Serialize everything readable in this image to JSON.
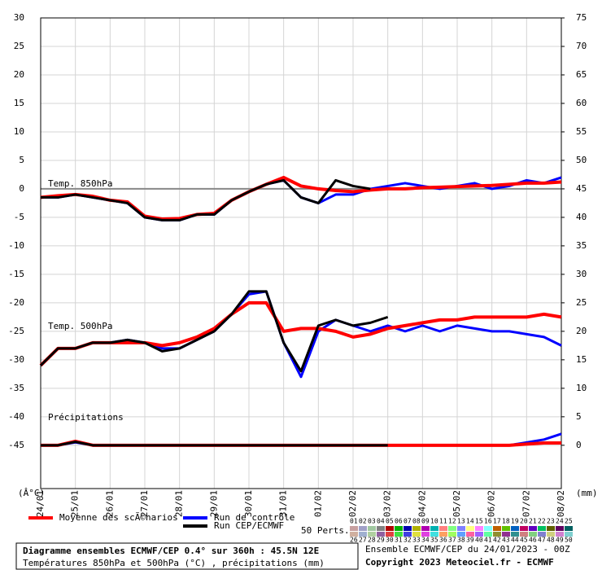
{
  "chart_data": {
    "type": "line",
    "x": [
      0,
      0.5,
      1,
      1.5,
      2,
      2.5,
      3,
      3.5,
      4,
      4.5,
      5,
      5.5,
      6,
      6.5,
      7,
      7.5,
      8,
      8.5,
      9,
      9.5,
      10,
      10.5,
      11,
      11.5,
      12,
      12.5,
      13,
      13.5,
      14,
      14.5,
      15
    ],
    "xlim": [
      0,
      15
    ],
    "xticks": [
      {
        "value": 0,
        "label": "24/01"
      },
      {
        "value": 1,
        "label": "25/01"
      },
      {
        "value": 2,
        "label": "26/01"
      },
      {
        "value": 3,
        "label": "27/01"
      },
      {
        "value": 4,
        "label": "28/01"
      },
      {
        "value": 5,
        "label": "29/01"
      },
      {
        "value": 6,
        "label": "30/01"
      },
      {
        "value": 7,
        "label": "31/01"
      },
      {
        "value": 8,
        "label": "01/02"
      },
      {
        "value": 9,
        "label": "02/02"
      },
      {
        "value": 10,
        "label": "03/02"
      },
      {
        "value": 11,
        "label": "04/02"
      },
      {
        "value": 12,
        "label": "05/02"
      },
      {
        "value": 13,
        "label": "06/02"
      },
      {
        "value": 14,
        "label": "07/02"
      },
      {
        "value": 15,
        "label": "08/02"
      }
    ],
    "ylim": [
      -52.6,
      30
    ],
    "yticks": [
      30,
      25,
      20,
      15,
      10,
      5,
      0,
      -5,
      -10,
      -15,
      -20,
      -25,
      -30,
      -35,
      -40,
      -45
    ],
    "y2lim": [
      -7.6,
      75
    ],
    "y2ticks": [
      75,
      70,
      65,
      60,
      55,
      50,
      45,
      40,
      35,
      30,
      25,
      20,
      15,
      10,
      5,
      0
    ],
    "y_label": "(Â°C)",
    "y2_label": "(mm)",
    "grid": true,
    "annotations": [
      {
        "text": "Temp. 850hPa",
        "y": 0
      },
      {
        "text": "Temp. 500hPa",
        "y": -25
      },
      {
        "text": "Précipitations",
        "y": -41
      }
    ],
    "series": [
      {
        "name": "Run de contrôle",
        "color": "#0000ff",
        "t850": [
          -1.5,
          -1.5,
          -1,
          -1.5,
          -2,
          -2.5,
          -5,
          -5.5,
          -5.5,
          -4.5,
          -4.5,
          -2,
          -0.5,
          0.8,
          1.5,
          -1.5,
          -2.5,
          -1,
          -1,
          0,
          0.5,
          1,
          0.5,
          0,
          0.5,
          1,
          0,
          0.5,
          1.5,
          1,
          2
        ],
        "t500": [
          -31,
          -28,
          -28,
          -27,
          -27,
          -26.5,
          -27,
          -28,
          -28,
          -26.5,
          -25,
          -22,
          -18.5,
          -18,
          -27,
          -33,
          -25,
          -23,
          -24,
          -25,
          -24,
          -25,
          -24,
          -25,
          -24,
          -24.5,
          -25,
          -25,
          -25.5,
          -26,
          -27.5
        ],
        "precip": [
          0,
          0,
          0.5,
          0,
          0,
          0,
          0,
          0,
          0,
          0,
          0,
          0,
          0,
          0,
          0,
          0,
          0,
          0,
          0,
          0,
          0,
          0,
          0,
          0,
          0,
          0,
          0,
          0,
          0.5,
          1,
          2
        ]
      },
      {
        "name": "Moyenne des scÃ©narios",
        "color": "#ff0000",
        "t850": [
          -1.5,
          -1.2,
          -1,
          -1.3,
          -2,
          -2.3,
          -4.8,
          -5.3,
          -5.2,
          -4.5,
          -4.3,
          -2,
          -0.5,
          0.8,
          2,
          0.5,
          0,
          -0.3,
          -0.5,
          -0.2,
          0,
          0,
          0.2,
          0.3,
          0.4,
          0.5,
          0.6,
          0.8,
          1,
          1,
          1.2
        ],
        "t500": [
          -31,
          -28,
          -28,
          -27,
          -27,
          -27,
          -27,
          -27.5,
          -27,
          -26,
          -24.5,
          -22,
          -20,
          -20,
          -25,
          -24.5,
          -24.5,
          -25,
          -26,
          -25.5,
          -24.5,
          -24,
          -23.5,
          -23,
          -23,
          -22.5,
          -22.5,
          -22.5,
          -22.5,
          -22,
          -22.5
        ],
        "precip": [
          0,
          0,
          0.7,
          0,
          0,
          0,
          0,
          0,
          0,
          0,
          0,
          0,
          0,
          0,
          0,
          0,
          0,
          0,
          0,
          0,
          0,
          0,
          0,
          0,
          0,
          0,
          0,
          0,
          0.2,
          0.4,
          0.4
        ]
      },
      {
        "name": "Run CEP/ECMWF",
        "color": "#000000",
        "t850": [
          -1.5,
          -1.5,
          -1,
          -1.5,
          -2,
          -2.5,
          -5,
          -5.5,
          -5.5,
          -4.5,
          -4.5,
          -2,
          -0.5,
          0.8,
          1.5,
          -1.5,
          -2.5,
          1.5,
          0.5,
          0,
          null,
          null,
          null,
          null,
          null,
          null,
          null,
          null,
          null,
          null,
          null
        ],
        "t500": [
          -31,
          -28,
          -28,
          -27,
          -27,
          -26.5,
          -27,
          -28.5,
          -28,
          -26.5,
          -25,
          -22,
          -18,
          -18,
          -27,
          -32,
          -24,
          -23,
          -24,
          -23.5,
          -22.5,
          null,
          null,
          null,
          null,
          null,
          null,
          null,
          null,
          null,
          null
        ],
        "precip": [
          0,
          0,
          0.6,
          0,
          0,
          0,
          0,
          0,
          0,
          0,
          0,
          0,
          0,
          0,
          0,
          0,
          0,
          0,
          0,
          0,
          0,
          null,
          null,
          null,
          null,
          null,
          null,
          null,
          null,
          null,
          null
        ]
      }
    ],
    "perts_label": "50 Perts.",
    "members": [
      {
        "name": "01",
        "color": "#c8a0a0"
      },
      {
        "name": "02",
        "color": "#a0a0c8"
      },
      {
        "name": "03",
        "color": "#a0c8a0"
      },
      {
        "name": "04",
        "color": "#808080"
      },
      {
        "name": "05",
        "color": "#b00000"
      },
      {
        "name": "06",
        "color": "#00b000"
      },
      {
        "name": "07",
        "color": "#0000b0"
      },
      {
        "name": "08",
        "color": "#b0b000"
      },
      {
        "name": "09",
        "color": "#b000b0"
      },
      {
        "name": "10",
        "color": "#00b0b0"
      },
      {
        "name": "11",
        "color": "#ff8080"
      },
      {
        "name": "12",
        "color": "#80ff80"
      },
      {
        "name": "13",
        "color": "#8080ff"
      },
      {
        "name": "14",
        "color": "#ffff80"
      },
      {
        "name": "15",
        "color": "#ff80ff"
      },
      {
        "name": "16",
        "color": "#80ffff"
      },
      {
        "name": "17",
        "color": "#c06000"
      },
      {
        "name": "18",
        "color": "#60c000"
      },
      {
        "name": "19",
        "color": "#0060c0"
      },
      {
        "name": "20",
        "color": "#c00060"
      },
      {
        "name": "21",
        "color": "#6000c0"
      },
      {
        "name": "22",
        "color": "#00c060"
      },
      {
        "name": "23",
        "color": "#606000"
      },
      {
        "name": "24",
        "color": "#600060"
      },
      {
        "name": "25",
        "color": "#006060"
      },
      {
        "name": "26",
        "color": "#d0b0a0"
      },
      {
        "name": "27",
        "color": "#a0b0d0"
      },
      {
        "name": "28",
        "color": "#b0d0a0"
      },
      {
        "name": "29",
        "color": "#9060a0"
      },
      {
        "name": "30",
        "color": "#e04040"
      },
      {
        "name": "31",
        "color": "#40e040"
      },
      {
        "name": "32",
        "color": "#4040e0"
      },
      {
        "name": "33",
        "color": "#e0e040"
      },
      {
        "name": "34",
        "color": "#e040e0"
      },
      {
        "name": "35",
        "color": "#40e0e0"
      },
      {
        "name": "36",
        "color": "#ffa060"
      },
      {
        "name": "37",
        "color": "#a0ff60"
      },
      {
        "name": "38",
        "color": "#60a0ff"
      },
      {
        "name": "39",
        "color": "#ff60a0"
      },
      {
        "name": "40",
        "color": "#a060ff"
      },
      {
        "name": "41",
        "color": "#60ffa0"
      },
      {
        "name": "42",
        "color": "#909030"
      },
      {
        "name": "43",
        "color": "#903090"
      },
      {
        "name": "44",
        "color": "#309090"
      },
      {
        "name": "45",
        "color": "#d08080"
      },
      {
        "name": "46",
        "color": "#80d080"
      },
      {
        "name": "47",
        "color": "#8080d0"
      },
      {
        "name": "48",
        "color": "#d0d080"
      },
      {
        "name": "49",
        "color": "#d080d0"
      },
      {
        "name": "50",
        "color": "#80d0d0"
      }
    ],
    "footer": {
      "title": "Diagramme ensembles ECMWF/CEP 0.4° sur 360h : 45.5N 12E",
      "subtitle": "Températures 850hPa et 500hPa (°C) , précipitations (mm)",
      "run": "Ensemble ECMWF/CEP du 24/01/2023 - 00Z",
      "copyright": "Copyright 2023 Meteociel.fr - ECMWF"
    }
  }
}
